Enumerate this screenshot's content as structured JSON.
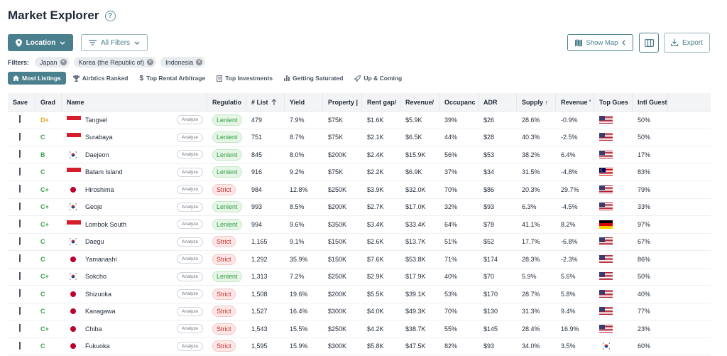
{
  "header": {
    "title": "Market Explorer"
  },
  "toolbar": {
    "location_label": "Location",
    "all_filters_label": "All Filters",
    "show_map_label": "Show Map",
    "export_label": "Export"
  },
  "filters": {
    "label": "Filters:",
    "chips": [
      "Japan",
      "Korea (the Republic of)",
      "Indonesia"
    ]
  },
  "tabs": [
    {
      "label": "Most Listings",
      "icon": "home-icon",
      "active": true
    },
    {
      "label": "Airbtics Ranked",
      "icon": "trophy-icon"
    },
    {
      "label": "Top Rental Arbitrage",
      "icon": "dollar-icon"
    },
    {
      "label": "Top Investments",
      "icon": "receipt-icon"
    },
    {
      "label": "Getting Saturated",
      "icon": "bar-chart-icon"
    },
    {
      "label": "Up & Coming",
      "icon": "rocket-icon"
    }
  ],
  "table": {
    "columns": {
      "save": "Save",
      "grade": "Grad",
      "name": "Name",
      "regulation": "Regulatio",
      "listings": "# List",
      "yield": "Yield",
      "property": "Property |",
      "rent_gap": "Rent gap/",
      "revenue": "Revenue/",
      "occupancy": "Occupanc",
      "adr": "ADR",
      "supply": "Supply ↑",
      "revenue_change": "Revenue '",
      "top_guest": "Top Gues",
      "intl_guest": "Intl Guest"
    },
    "analyze_label": "Analyze",
    "rows": [
      {
        "grade": "D+",
        "gclass": "grade-dplus",
        "flag": "id",
        "name": "Tangsel",
        "reg": "Lenient",
        "listings": "479",
        "yield": "7.9%",
        "property": "$75K",
        "rent": "$1.6K",
        "revenue": "$5.9K",
        "occ": "39%",
        "adr": "$26",
        "supply": "28.6%",
        "revc": "-0.9%",
        "guest": "us",
        "intl": "50%"
      },
      {
        "grade": "C",
        "gclass": "grade-c",
        "flag": "id",
        "name": "Surabaya",
        "reg": "Lenient",
        "listings": "751",
        "yield": "8.7%",
        "property": "$75K",
        "rent": "$2.1K",
        "revenue": "$6.5K",
        "occ": "44%",
        "adr": "$28",
        "supply": "40.3%",
        "revc": "-2.5%",
        "guest": "us",
        "intl": "50%"
      },
      {
        "grade": "B",
        "gclass": "grade-b",
        "flag": "kr",
        "name": "Daejeon",
        "reg": "Lenient",
        "listings": "845",
        "yield": "8.0%",
        "property": "$200K",
        "rent": "$2.4K",
        "revenue": "$15.9K",
        "occ": "56%",
        "adr": "$53",
        "supply": "38.2%",
        "revc": "6.4%",
        "guest": "us",
        "intl": "17%"
      },
      {
        "grade": "C",
        "gclass": "grade-c",
        "flag": "id",
        "name": "Batam Island",
        "reg": "Lenient",
        "listings": "916",
        "yield": "9.2%",
        "property": "$75K",
        "rent": "$2.2K",
        "revenue": "$6.9K",
        "occ": "37%",
        "adr": "$34",
        "supply": "31.5%",
        "revc": "-4.8%",
        "guest": "my",
        "intl": "83%"
      },
      {
        "grade": "C+",
        "gclass": "grade-c",
        "flag": "jp",
        "name": "Hiroshima",
        "reg": "Strict",
        "listings": "984",
        "yield": "12.8%",
        "property": "$250K",
        "rent": "$3.9K",
        "revenue": "$32.0K",
        "occ": "70%",
        "adr": "$86",
        "supply": "20.3%",
        "revc": "29.7%",
        "guest": "us",
        "intl": "79%"
      },
      {
        "grade": "C+",
        "gclass": "grade-c",
        "flag": "kr",
        "name": "Geoje",
        "reg": "Lenient",
        "listings": "993",
        "yield": "8.5%",
        "property": "$200K",
        "rent": "$2.7K",
        "revenue": "$17.0K",
        "occ": "32%",
        "adr": "$93",
        "supply": "6.3%",
        "revc": "-4.5%",
        "guest": "us",
        "intl": "33%"
      },
      {
        "grade": "C+",
        "gclass": "grade-c",
        "flag": "id",
        "name": "Lombok South",
        "reg": "Lenient",
        "listings": "994",
        "yield": "9.6%",
        "property": "$350K",
        "rent": "$3.4K",
        "revenue": "$33.4K",
        "occ": "64%",
        "adr": "$78",
        "supply": "41.1%",
        "revc": "8.2%",
        "guest": "de",
        "intl": "97%"
      },
      {
        "grade": "C",
        "gclass": "grade-c",
        "flag": "kr",
        "name": "Daegu",
        "reg": "Strict",
        "listings": "1,165",
        "yield": "9.1%",
        "property": "$150K",
        "rent": "$2.6K",
        "revenue": "$13.7K",
        "occ": "51%",
        "adr": "$52",
        "supply": "17.7%",
        "revc": "-6.8%",
        "guest": "us",
        "intl": "67%"
      },
      {
        "grade": "C",
        "gclass": "grade-c",
        "flag": "jp",
        "name": "Yamanashi",
        "reg": "Strict",
        "listings": "1,292",
        "yield": "35.9%",
        "property": "$150K",
        "rent": "$7.6K",
        "revenue": "$53.8K",
        "occ": "71%",
        "adr": "$174",
        "supply": "28.3%",
        "revc": "-2.3%",
        "guest": "us",
        "intl": "86%"
      },
      {
        "grade": "C+",
        "gclass": "grade-c",
        "flag": "kr",
        "name": "Sokcho",
        "reg": "Lenient",
        "listings": "1,313",
        "yield": "7.2%",
        "property": "$250K",
        "rent": "$2.9K",
        "revenue": "$17.9K",
        "occ": "40%",
        "adr": "$70",
        "supply": "5.9%",
        "revc": "5.6%",
        "guest": "us",
        "intl": "50%"
      },
      {
        "grade": "C",
        "gclass": "grade-c",
        "flag": "jp",
        "name": "Shizuoka",
        "reg": "Strict",
        "listings": "1,508",
        "yield": "19.6%",
        "property": "$200K",
        "rent": "$5.5K",
        "revenue": "$39.1K",
        "occ": "53%",
        "adr": "$170",
        "supply": "28.7%",
        "revc": "5.8%",
        "guest": "us",
        "intl": "40%"
      },
      {
        "grade": "C",
        "gclass": "grade-c",
        "flag": "jp",
        "name": "Kanagawa",
        "reg": "Strict",
        "listings": "1,527",
        "yield": "16.4%",
        "property": "$300K",
        "rent": "$4.0K",
        "revenue": "$49.3K",
        "occ": "70%",
        "adr": "$130",
        "supply": "31.3%",
        "revc": "9.4%",
        "guest": "us",
        "intl": "77%"
      },
      {
        "grade": "C+",
        "gclass": "grade-c",
        "flag": "jp",
        "name": "Chiba",
        "reg": "Strict",
        "listings": "1,543",
        "yield": "15.5%",
        "property": "$250K",
        "rent": "$4.2K",
        "revenue": "$38.7K",
        "occ": "55%",
        "adr": "$145",
        "supply": "28.4%",
        "revc": "16.9%",
        "guest": "us",
        "intl": "23%"
      },
      {
        "grade": "C",
        "gclass": "grade-c",
        "flag": "jp",
        "name": "Fukuoka",
        "reg": "Strict",
        "listings": "1,595",
        "yield": "15.9%",
        "property": "$300K",
        "rent": "$5.8K",
        "revenue": "$47.5K",
        "occ": "82%",
        "adr": "$93",
        "supply": "34.0%",
        "revc": "3.5%",
        "guest": "kr",
        "intl": "60%"
      }
    ]
  }
}
